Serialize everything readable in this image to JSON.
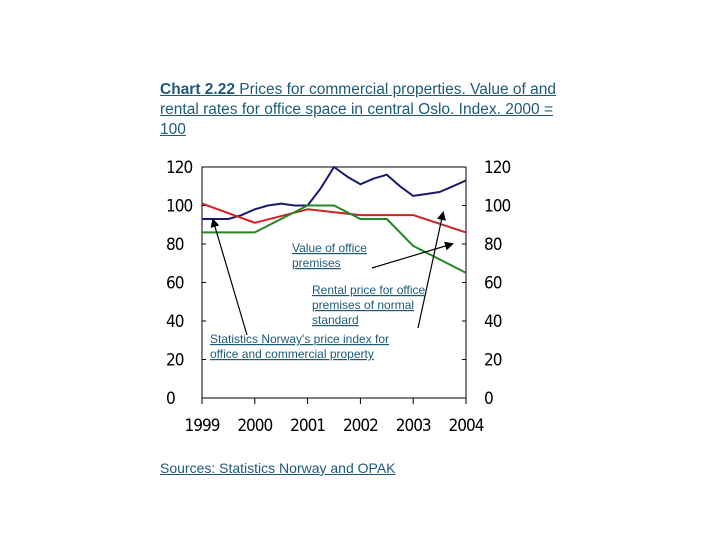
{
  "chart_data": {
    "type": "line",
    "title_lead": "Chart 2.22",
    "title_rest": " Prices for commercial properties. Value of and rental rates for office space in central Oslo. Index. 2000 = 100",
    "x_ticks": [
      "1999",
      "2000",
      "2001",
      "2002",
      "2003",
      "2004"
    ],
    "y_ticks": [
      "0",
      "20",
      "40",
      "60",
      "80",
      "100",
      "120"
    ],
    "y_ticks_right": [
      "0",
      "20",
      "40",
      "60",
      "80",
      "100",
      "120"
    ],
    "ylim": [
      0,
      120
    ],
    "xlim": [
      1999,
      2004
    ],
    "grid": false,
    "series": [
      {
        "key": "price-index",
        "color": "#1a1a6e",
        "x": [
          1999,
          1999.25,
          1999.5,
          1999.75,
          2000,
          2000.25,
          2000.5,
          2000.75,
          2001,
          2001.25,
          2001.5,
          2001.75,
          2002,
          2002.25,
          2002.5,
          2002.75,
          2003,
          2003.25,
          2003.5,
          2003.75,
          2004
        ],
        "values": [
          93,
          93,
          93,
          95,
          98,
          100,
          101,
          100,
          100,
          109,
          120,
          115,
          111,
          114,
          116,
          110,
          105,
          106,
          107,
          110,
          113
        ]
      },
      {
        "key": "rental-price",
        "color": "#cc2222",
        "x": [
          1999,
          2000,
          2001,
          2002,
          2003,
          2004
        ],
        "values": [
          101,
          91,
          98,
          95,
          95,
          86
        ]
      },
      {
        "key": "office-value",
        "color": "#228822",
        "x": [
          1999,
          2000,
          2001,
          2001.5,
          2002,
          2002.5,
          2003,
          2003.5,
          2004
        ],
        "values": [
          86,
          86,
          100,
          100,
          93,
          93,
          79,
          72,
          65
        ]
      }
    ],
    "annotations": [
      {
        "key": "office-value",
        "lines": [
          "Value of office",
          "premises"
        ]
      },
      {
        "key": "rental-price",
        "lines": [
          "Rental price for office",
          "premises of normal",
          "standard"
        ]
      },
      {
        "key": "price-index",
        "lines": [
          "Statistics Norway's price index for",
          "office and commercial property"
        ]
      }
    ],
    "source": "Sources: Statistics Norway and OPAK"
  }
}
